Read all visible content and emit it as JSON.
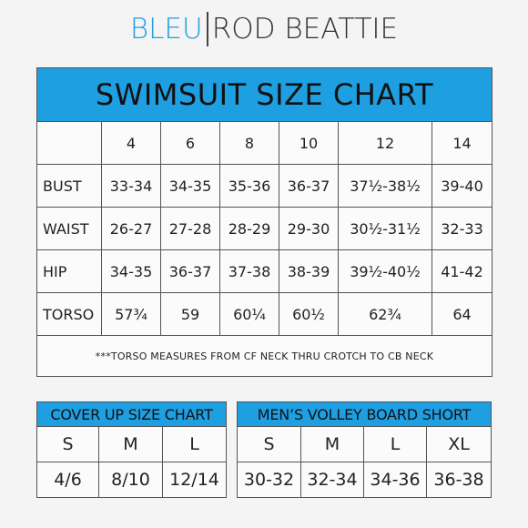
{
  "brand": {
    "left": "BLEU",
    "right": "ROD BEATTIE",
    "left_color": "#1e9fe2"
  },
  "swimsuit": {
    "title": "SWIMSUIT SIZE CHART",
    "header_color": "#1e9fe2",
    "sizes": [
      "4",
      "6",
      "8",
      "10",
      "12",
      "14"
    ],
    "rows": [
      {
        "label": "BUST",
        "values": [
          "33-34",
          "34-35",
          "35-36",
          "36-37",
          "37½-38½",
          "39-40"
        ]
      },
      {
        "label": "WAIST",
        "values": [
          "26-27",
          "27-28",
          "28-29",
          "29-30",
          "30½-31½",
          "32-33"
        ]
      },
      {
        "label": "HIP",
        "values": [
          "34-35",
          "36-37",
          "37-38",
          "38-39",
          "39½-40½",
          "41-42"
        ]
      },
      {
        "label": "TORSO",
        "values": [
          "57¾",
          "59",
          "60¼",
          "60½",
          "62¾",
          "64"
        ]
      }
    ],
    "note": "***TORSO MEASURES FROM CF NECK THRU CROTCH TO CB NECK"
  },
  "cover_up": {
    "title": "COVER UP SIZE CHART",
    "sizes": [
      "S",
      "M",
      "L"
    ],
    "values": [
      "4/6",
      "8/10",
      "12/14"
    ]
  },
  "volley": {
    "title": "MEN’S VOLLEY BOARD SHORT",
    "sizes": [
      "S",
      "M",
      "L",
      "XL"
    ],
    "values": [
      "30-32",
      "32-34",
      "34-36",
      "36-38"
    ]
  }
}
